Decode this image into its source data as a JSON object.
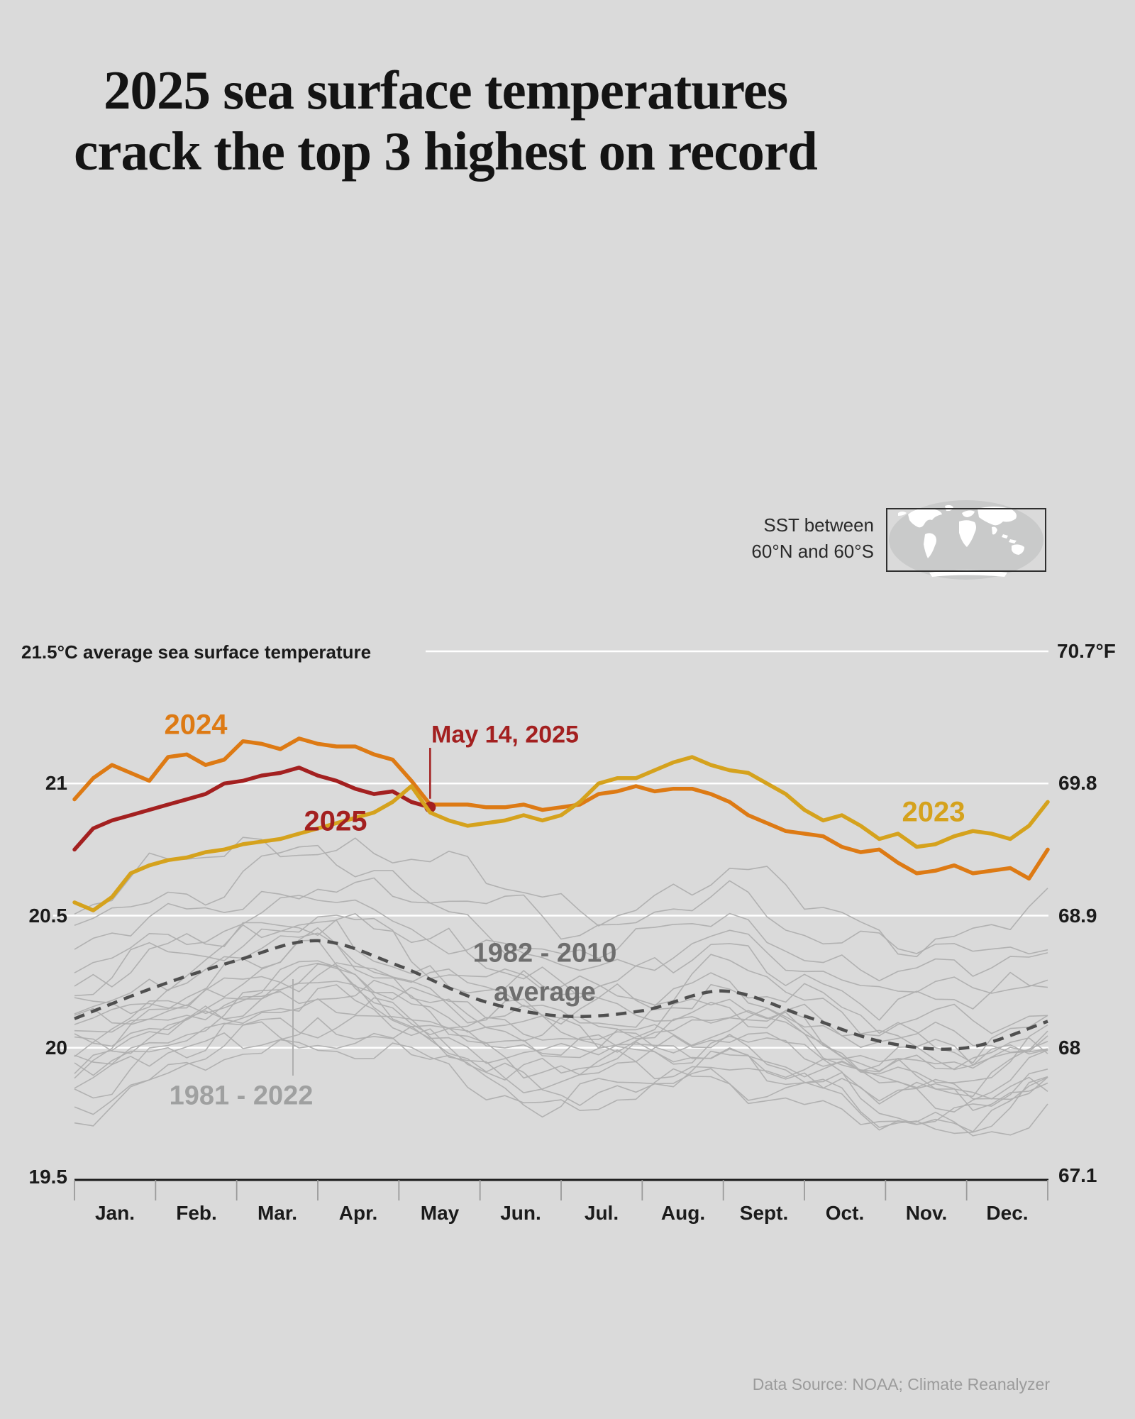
{
  "title": {
    "line1": "2025 sea surface temperatures",
    "line2": "crack the top 3 highest on record"
  },
  "inset": {
    "caption_line1": "SST between",
    "caption_line2": "60°N and 60°S"
  },
  "annotations": {
    "may14_label": "May 14, 2025",
    "label_2024": "2024",
    "label_2025": "2025",
    "label_2023": "2023",
    "avg_label_line1": "1982 - 2010",
    "avg_label_line2": "average",
    "gray_years_label": "1981 - 2022"
  },
  "source": "Data Source: NOAA; Climate Reanalyzer",
  "colors": {
    "background": "#DADADA",
    "grid": "#FFFFFF",
    "axis": "#1A1A1A",
    "tick": "#9A9A9A",
    "title_text": "#141414",
    "s2024": "#DD7A14",
    "s2025": "#A32020",
    "s2023": "#D5A21D",
    "average_dashed": "#4F4F4F",
    "gray_lines": "#AFAFAF",
    "label_avg": "#6E6E6E",
    "label_gray_years": "#9FA0A0",
    "source_text": "#9B9B9B",
    "map_ocean": "#C9CACA",
    "map_land": "#FFFFFF",
    "map_frame": "#2F2F2F"
  },
  "chart_data": {
    "type": "line",
    "title": "2025 sea surface temperatures crack the top 3 highest on record",
    "subtitle_left_axis": "21.5°C average sea surface temperature",
    "x_unit": "weeks from Jan 1 (index 0–52)",
    "ylim_c": [
      19.5,
      21.5
    ],
    "grid": "horizontal white lines at 20, 20.5, 21, 21.5 °C",
    "legend_position": "inline labels on lines",
    "left_ticks": [
      {
        "c": 21.5,
        "label": "21.5°C average sea surface temperature"
      },
      {
        "c": 21.0,
        "label": "21"
      },
      {
        "c": 20.5,
        "label": "20.5"
      },
      {
        "c": 20.0,
        "label": "20"
      },
      {
        "c": 19.5,
        "label": "19.5"
      }
    ],
    "right_ticks": [
      {
        "c": 21.5,
        "label": "70.7°F"
      },
      {
        "c": 21.0,
        "label": "69.8"
      },
      {
        "c": 20.5,
        "label": "68.9"
      },
      {
        "c": 20.0,
        "label": "68"
      },
      {
        "c": 19.5,
        "label": "67.1"
      }
    ],
    "months": [
      "Jan.",
      "Feb.",
      "Mar.",
      "Apr.",
      "May",
      "Jun.",
      "Jul.",
      "Aug.",
      "Sept.",
      "Oct.",
      "Nov.",
      "Dec."
    ],
    "series": [
      {
        "name": "2024",
        "color_key": "s2024",
        "weekly_c": [
          20.94,
          21.02,
          21.07,
          21.04,
          21.01,
          21.1,
          21.11,
          21.07,
          21.09,
          21.16,
          21.15,
          21.13,
          21.17,
          21.15,
          21.14,
          21.14,
          21.11,
          21.09,
          21.01,
          20.92,
          20.92,
          20.92,
          20.91,
          20.91,
          20.92,
          20.9,
          20.91,
          20.92,
          20.96,
          20.97,
          20.99,
          20.97,
          20.98,
          20.98,
          20.96,
          20.93,
          20.88,
          20.85,
          20.82,
          20.81,
          20.8,
          20.76,
          20.74,
          20.75,
          20.7,
          20.66,
          20.67,
          20.69,
          20.66,
          20.67,
          20.68,
          20.64,
          20.75
        ]
      },
      {
        "name": "2025",
        "color_key": "s2025",
        "weekly_c": [
          20.75,
          20.83,
          20.86,
          20.88,
          20.9,
          20.92,
          20.94,
          20.96,
          21.0,
          21.01,
          21.03,
          21.04,
          21.06,
          21.03,
          21.01,
          20.98,
          20.96,
          20.97,
          20.93,
          20.91
        ],
        "endpoint": {
          "label": "May 14, 2025",
          "week": 19,
          "c": 20.91
        }
      },
      {
        "name": "2023",
        "color_key": "s2023",
        "weekly_c": [
          20.55,
          20.52,
          20.57,
          20.66,
          20.69,
          20.71,
          20.72,
          20.74,
          20.75,
          20.77,
          20.78,
          20.79,
          20.81,
          20.83,
          20.85,
          20.87,
          20.89,
          20.93,
          20.99,
          20.89,
          20.86,
          20.84,
          20.85,
          20.86,
          20.88,
          20.86,
          20.88,
          20.93,
          21.0,
          21.02,
          21.02,
          21.05,
          21.08,
          21.1,
          21.07,
          21.05,
          21.04,
          21.0,
          20.96,
          20.9,
          20.86,
          20.88,
          20.84,
          20.79,
          20.81,
          20.76,
          20.77,
          20.8,
          20.82,
          20.81,
          20.79,
          20.84,
          20.93
        ]
      }
    ],
    "average_1982_2010": {
      "label": "1982 - 2010 average",
      "monthly_c": [
        20.11,
        20.23,
        20.33,
        20.405,
        20.31,
        20.18,
        20.12,
        20.14,
        20.215,
        20.12,
        20.02,
        20.0,
        20.1
      ]
    },
    "background_years": {
      "label": "1981 - 2022",
      "count": 22,
      "base_monthly_c": [
        20.06,
        20.16,
        20.26,
        20.33,
        20.25,
        20.13,
        20.07,
        20.09,
        20.16,
        20.07,
        19.97,
        19.95,
        20.04
      ],
      "line_offsets_c": [
        -0.28,
        -0.25,
        -0.22,
        -0.19,
        -0.16,
        -0.14,
        -0.12,
        -0.1,
        -0.08,
        -0.06,
        -0.04,
        -0.02,
        0.0,
        0.03,
        0.06,
        0.1,
        0.14,
        0.19,
        0.24,
        0.31,
        0.4,
        0.48
      ],
      "line_seeds": [
        11,
        23,
        37,
        41,
        53,
        67,
        71,
        83,
        97,
        101,
        113,
        127,
        131,
        139,
        149,
        157,
        163,
        173,
        181,
        191,
        199,
        211
      ],
      "wiggle_amplitude_c": 0.05
    }
  }
}
